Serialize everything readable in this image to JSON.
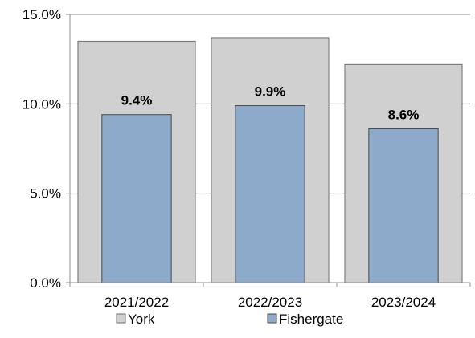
{
  "chart_data": {
    "type": "bar",
    "categories": [
      "2021/2022",
      "2022/2023",
      "2023/2024"
    ],
    "series": [
      {
        "name": "York",
        "values": [
          13.5,
          13.7,
          12.2
        ],
        "color": "#d0d0d0"
      },
      {
        "name": "Fishergate",
        "values": [
          9.4,
          9.9,
          8.6
        ],
        "color": "#8eaacb"
      }
    ],
    "data_labels": [
      "9.4%",
      "9.9%",
      "8.6%"
    ],
    "y_ticks": [
      "0.0%",
      "5.0%",
      "10.0%",
      "15.0%"
    ],
    "ylim": [
      0,
      15
    ],
    "grid": true,
    "legend_position": "bottom",
    "title": "",
    "xlabel": "",
    "ylabel": ""
  }
}
